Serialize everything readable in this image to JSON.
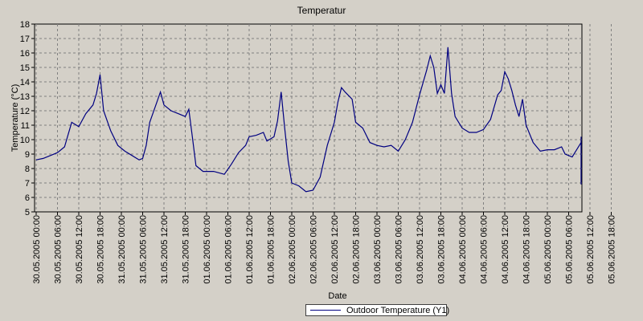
{
  "chart_data": {
    "type": "line",
    "title": "Temperatur",
    "xlabel": "Date",
    "ylabel": "Temperature (°C)",
    "ylim": [
      5,
      18
    ],
    "yticks": [
      5,
      6,
      7,
      8,
      9,
      10,
      11,
      12,
      13,
      14,
      15,
      16,
      17,
      18
    ],
    "xlim": [
      "2005-05-30 00:00",
      "2005-06-05 23:00"
    ],
    "xtick_labels": [
      "30.05.2005 00:00",
      "30.05.2005 06:00",
      "30.05.2005 12:00",
      "30.05.2005 18:00",
      "31.05.2005 00:00",
      "31.05.2005 06:00",
      "31.05.2005 12:00",
      "31.05.2005 18:00",
      "01.06.2005 00:00",
      "01.06.2005 06:00",
      "01.06.2005 12:00",
      "01.06.2005 18:00",
      "02.06.2005 00:00",
      "02.06.2005 06:00",
      "02.06.2005 12:00",
      "02.06.2005 18:00",
      "03.06.2005 00:00",
      "03.06.2005 06:00",
      "03.06.2005 12:00",
      "03.06.2005 18:00",
      "04.06.2005 00:00",
      "04.06.2005 06:00",
      "04.06.2005 12:00",
      "04.06.2005 18:00",
      "05.06.2005 00:00",
      "05.06.2005 06:00",
      "05.06.2005 12:00",
      "05.06.2005 18:00"
    ],
    "grid": true,
    "legend_position": "bottom-center",
    "series": [
      {
        "name": "Outdoor Temperature (Y1)",
        "color": "#000080",
        "points": [
          [
            "2005-05-30 00:00",
            8.6
          ],
          [
            "2005-05-30 02:00",
            8.7
          ],
          [
            "2005-05-30 04:00",
            8.9
          ],
          [
            "2005-05-30 06:00",
            9.1
          ],
          [
            "2005-05-30 08:00",
            9.5
          ],
          [
            "2005-05-30 10:00",
            11.2
          ],
          [
            "2005-05-30 12:00",
            10.9
          ],
          [
            "2005-05-30 14:00",
            11.8
          ],
          [
            "2005-05-30 16:00",
            12.4
          ],
          [
            "2005-05-30 17:00",
            13.2
          ],
          [
            "2005-05-30 18:00",
            14.5
          ],
          [
            "2005-05-30 19:00",
            12.0
          ],
          [
            "2005-05-30 21:00",
            10.6
          ],
          [
            "2005-05-30 23:00",
            9.6
          ],
          [
            "2005-05-31 01:00",
            9.2
          ],
          [
            "2005-05-31 03:00",
            8.9
          ],
          [
            "2005-05-31 05:00",
            8.6
          ],
          [
            "2005-05-31 06:00",
            8.7
          ],
          [
            "2005-05-31 07:00",
            9.6
          ],
          [
            "2005-05-31 08:00",
            11.2
          ],
          [
            "2005-05-31 10:00",
            12.6
          ],
          [
            "2005-05-31 11:00",
            13.3
          ],
          [
            "2005-05-31 12:00",
            12.4
          ],
          [
            "2005-05-31 14:00",
            12.0
          ],
          [
            "2005-05-31 16:00",
            11.8
          ],
          [
            "2005-05-31 18:00",
            11.6
          ],
          [
            "2005-05-31 19:00",
            12.1
          ],
          [
            "2005-05-31 20:00",
            10.2
          ],
          [
            "2005-05-31 21:00",
            8.2
          ],
          [
            "2005-05-31 23:00",
            7.8
          ],
          [
            "2005-06-01 02:00",
            7.8
          ],
          [
            "2005-06-01 05:00",
            7.6
          ],
          [
            "2005-06-01 07:00",
            8.3
          ],
          [
            "2005-06-01 09:00",
            9.1
          ],
          [
            "2005-06-01 11:00",
            9.6
          ],
          [
            "2005-06-01 12:00",
            10.2
          ],
          [
            "2005-06-01 14:00",
            10.3
          ],
          [
            "2005-06-01 16:00",
            10.5
          ],
          [
            "2005-06-01 17:00",
            9.9
          ],
          [
            "2005-06-01 19:00",
            10.2
          ],
          [
            "2005-06-01 20:00",
            11.3
          ],
          [
            "2005-06-01 21:00",
            13.3
          ],
          [
            "2005-06-01 22:00",
            10.8
          ],
          [
            "2005-06-01 23:00",
            8.5
          ],
          [
            "2005-06-02 00:00",
            7.0
          ],
          [
            "2005-06-02 02:00",
            6.8
          ],
          [
            "2005-06-02 04:00",
            6.4
          ],
          [
            "2005-06-02 06:00",
            6.5
          ],
          [
            "2005-06-02 08:00",
            7.4
          ],
          [
            "2005-06-02 10:00",
            9.6
          ],
          [
            "2005-06-02 12:00",
            11.2
          ],
          [
            "2005-06-02 13:00",
            12.6
          ],
          [
            "2005-06-02 14:00",
            13.6
          ],
          [
            "2005-06-02 15:00",
            13.3
          ],
          [
            "2005-06-02 17:00",
            12.8
          ],
          [
            "2005-06-02 18:00",
            11.2
          ],
          [
            "2005-06-02 20:00",
            10.8
          ],
          [
            "2005-06-02 22:00",
            9.8
          ],
          [
            "2005-06-03 00:00",
            9.6
          ],
          [
            "2005-06-03 02:00",
            9.5
          ],
          [
            "2005-06-03 04:00",
            9.6
          ],
          [
            "2005-06-03 06:00",
            9.2
          ],
          [
            "2005-06-03 08:00",
            10.0
          ],
          [
            "2005-06-03 10:00",
            11.2
          ],
          [
            "2005-06-03 12:00",
            13.1
          ],
          [
            "2005-06-03 14:00",
            14.8
          ],
          [
            "2005-06-03 15:00",
            15.8
          ],
          [
            "2005-06-03 16:00",
            15.0
          ],
          [
            "2005-06-03 17:00",
            13.2
          ],
          [
            "2005-06-03 18:00",
            13.8
          ],
          [
            "2005-06-03 19:00",
            13.2
          ],
          [
            "2005-06-03 20:00",
            16.4
          ],
          [
            "2005-06-03 21:00",
            13.2
          ],
          [
            "2005-06-03 22:00",
            11.6
          ],
          [
            "2005-06-04 00:00",
            10.8
          ],
          [
            "2005-06-04 02:00",
            10.5
          ],
          [
            "2005-06-04 04:00",
            10.5
          ],
          [
            "2005-06-04 06:00",
            10.7
          ],
          [
            "2005-06-04 08:00",
            11.4
          ],
          [
            "2005-06-04 10:00",
            13.1
          ],
          [
            "2005-06-04 11:00",
            13.4
          ],
          [
            "2005-06-04 12:00",
            14.7
          ],
          [
            "2005-06-04 13:00",
            14.2
          ],
          [
            "2005-06-04 14:00",
            13.4
          ],
          [
            "2005-06-04 15:00",
            12.4
          ],
          [
            "2005-06-04 16:00",
            11.6
          ],
          [
            "2005-06-04 17:00",
            12.8
          ],
          [
            "2005-06-04 18:00",
            11.0
          ],
          [
            "2005-06-04 20:00",
            9.8
          ],
          [
            "2005-06-04 22:00",
            9.2
          ],
          [
            "2005-06-05 00:00",
            9.3
          ],
          [
            "2005-06-05 02:00",
            9.3
          ],
          [
            "2005-06-05 04:00",
            9.5
          ],
          [
            "2005-06-05 05:00",
            9.0
          ],
          [
            "2005-06-05 07:00",
            8.8
          ],
          [
            "2005-06-05 08:00",
            9.2
          ],
          [
            "2005-06-05 10:00",
            9.8
          ],
          [
            "2005-06-05 12:00",
            9.7
          ],
          [
            "2005-06-05 14:00",
            10.2
          ],
          [
            "2005-06-05 16:00",
            9.6
          ],
          [
            "2005-06-05 18:00",
            9.2
          ],
          [
            "2005-06-05 19:00",
            8.5
          ],
          [
            "2005-06-05 20:00",
            8.2
          ],
          [
            "2005-06-05 21:00",
            9.3
          ],
          [
            "2005-06-05 22:00",
            7.0
          ],
          [
            "2005-06-05 23:00",
            6.9
          ]
        ]
      }
    ]
  }
}
